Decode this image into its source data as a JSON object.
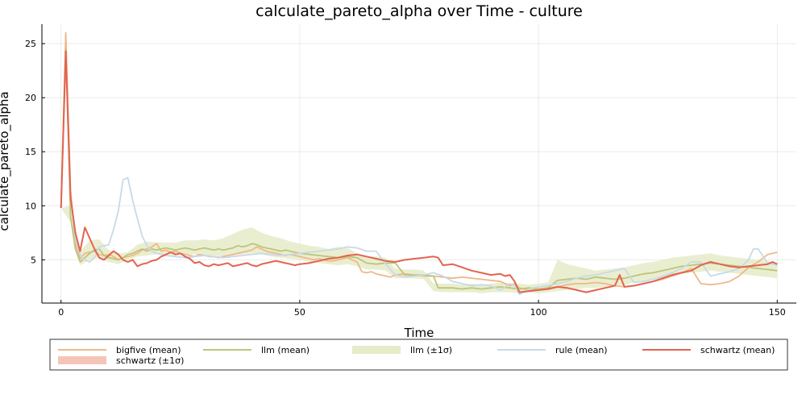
{
  "chart_data": {
    "type": "line",
    "title": "calculate_pareto_alpha over Time - culture",
    "xlabel": "Time",
    "ylabel": "calculate_pareto_alpha",
    "xlim": [
      -4,
      154
    ],
    "ylim": [
      1,
      26.8
    ],
    "xticks": [
      0,
      50,
      100,
      150
    ],
    "yticks": [
      5,
      10,
      15,
      20,
      25
    ],
    "grid": true,
    "legend_position": "bottom",
    "series": [
      {
        "name": "bigfive (mean)",
        "kind": "line",
        "color": "#f0b888",
        "x": [
          0,
          1,
          2,
          3,
          4,
          5,
          6,
          7,
          8,
          9,
          10,
          11,
          12,
          13,
          14,
          15,
          16,
          17,
          18,
          19,
          20,
          21,
          22,
          23,
          24,
          25,
          26,
          27,
          28,
          29,
          30,
          31,
          32,
          33,
          34,
          35,
          36,
          37,
          38,
          39,
          40,
          41,
          42,
          43,
          44,
          45,
          46,
          47,
          48,
          49,
          50,
          51,
          52,
          53,
          54,
          55,
          56,
          57,
          58,
          59,
          60,
          61,
          62,
          63,
          64,
          65,
          66,
          67,
          68,
          69,
          70,
          72,
          74,
          76,
          78,
          80,
          82,
          84,
          86,
          88,
          90,
          92,
          94,
          95,
          96,
          98,
          100,
          102,
          104,
          106,
          108,
          110,
          112,
          114,
          116,
          118,
          120,
          122,
          124,
          126,
          128,
          130,
          132,
          134,
          136,
          138,
          140,
          142,
          144,
          146,
          148,
          150
        ],
        "y": [
          9.8,
          26.0,
          11.5,
          6.5,
          5.1,
          5.6,
          5.7,
          5.8,
          5.5,
          5.4,
          5.5,
          5.3,
          5.0,
          5.2,
          5.3,
          5.4,
          5.6,
          5.9,
          6.0,
          6.2,
          6.5,
          5.8,
          5.9,
          5.7,
          5.8,
          5.6,
          5.5,
          5.4,
          5.3,
          5.5,
          5.4,
          5.3,
          5.3,
          5.2,
          5.3,
          5.4,
          5.5,
          5.6,
          5.7,
          5.8,
          5.9,
          6.2,
          6.0,
          5.8,
          5.7,
          5.6,
          5.5,
          5.4,
          5.5,
          5.4,
          5.3,
          5.2,
          5.1,
          5.0,
          5.1,
          5.0,
          4.9,
          4.9,
          5.0,
          5.1,
          5.2,
          5.0,
          4.8,
          3.9,
          3.8,
          3.9,
          3.7,
          3.6,
          3.5,
          3.4,
          3.6,
          3.7,
          3.6,
          3.5,
          3.5,
          3.4,
          3.3,
          3.4,
          3.3,
          3.2,
          3.1,
          3.0,
          2.6,
          2.8,
          2.4,
          2.2,
          2.3,
          2.4,
          2.5,
          2.7,
          2.8,
          2.8,
          2.9,
          2.8,
          2.6,
          2.5,
          2.6,
          2.8,
          3.0,
          3.2,
          3.5,
          3.8,
          4.2,
          2.8,
          2.7,
          2.8,
          3.0,
          3.5,
          4.3,
          4.8,
          5.5,
          5.7
        ]
      },
      {
        "name": "llm (mean)",
        "kind": "line",
        "color": "#bcc57a",
        "x": [
          0,
          1,
          2,
          3,
          4,
          5,
          6,
          7,
          8,
          9,
          10,
          11,
          12,
          13,
          14,
          15,
          16,
          17,
          18,
          19,
          20,
          21,
          22,
          23,
          24,
          25,
          26,
          27,
          28,
          29,
          30,
          31,
          32,
          33,
          34,
          35,
          36,
          37,
          38,
          39,
          40,
          41,
          42,
          43,
          44,
          45,
          46,
          47,
          48,
          49,
          50,
          52,
          54,
          56,
          58,
          60,
          62,
          64,
          66,
          68,
          70,
          72,
          74,
          76,
          78,
          79,
          80,
          82,
          84,
          86,
          88,
          90,
          92,
          94,
          96,
          98,
          100,
          102,
          104,
          106,
          108,
          110,
          112,
          114,
          116,
          118,
          120,
          122,
          124,
          126,
          128,
          130,
          132,
          134,
          136,
          138,
          140,
          142,
          144,
          146,
          148,
          150
        ],
        "y": [
          9.8,
          24.5,
          9.0,
          6.0,
          4.8,
          5.2,
          5.6,
          5.9,
          6.0,
          5.4,
          5.2,
          5.1,
          5.0,
          5.2,
          5.5,
          5.6,
          5.8,
          6.0,
          5.8,
          6.0,
          5.9,
          6.0,
          6.1,
          6.0,
          5.9,
          6.0,
          6.1,
          6.0,
          5.9,
          6.0,
          6.1,
          6.0,
          5.9,
          6.0,
          5.9,
          6.0,
          6.1,
          6.3,
          6.2,
          6.3,
          6.5,
          6.4,
          6.2,
          6.1,
          6.0,
          5.9,
          5.8,
          5.9,
          5.8,
          5.7,
          5.6,
          5.5,
          5.4,
          5.3,
          5.2,
          5.3,
          5.2,
          4.7,
          4.6,
          4.7,
          4.7,
          3.6,
          3.6,
          3.6,
          3.5,
          2.4,
          2.4,
          2.4,
          2.3,
          2.4,
          2.3,
          2.4,
          2.5,
          2.4,
          2.3,
          2.4,
          2.3,
          2.4,
          3.1,
          3.2,
          3.3,
          3.2,
          3.4,
          3.3,
          3.2,
          3.3,
          3.5,
          3.7,
          3.8,
          4.0,
          4.2,
          4.4,
          4.5,
          4.6,
          4.7,
          4.6,
          4.5,
          4.4,
          4.3,
          4.2,
          4.1,
          4.0
        ]
      },
      {
        "name": "llm (±1σ)",
        "kind": "band",
        "color": "#e6ebc8",
        "x": [
          0,
          2,
          4,
          6,
          8,
          10,
          12,
          14,
          16,
          18,
          20,
          22,
          24,
          26,
          28,
          30,
          32,
          34,
          36,
          38,
          40,
          42,
          44,
          46,
          48,
          50,
          52,
          54,
          56,
          58,
          60,
          62,
          64,
          66,
          68,
          70,
          72,
          74,
          76,
          78,
          80,
          82,
          84,
          86,
          88,
          90,
          92,
          94,
          96,
          98,
          100,
          102,
          104,
          106,
          108,
          110,
          112,
          114,
          116,
          118,
          120,
          122,
          124,
          126,
          128,
          130,
          132,
          134,
          136,
          138,
          140,
          142,
          144,
          146,
          148,
          150
        ],
        "lower": [
          9.8,
          8.5,
          4.5,
          5.0,
          5.2,
          4.8,
          4.6,
          5.0,
          5.3,
          5.4,
          5.5,
          5.5,
          5.4,
          5.5,
          5.5,
          5.4,
          5.4,
          5.3,
          5.4,
          5.5,
          5.6,
          5.5,
          5.3,
          5.2,
          5.1,
          5.0,
          4.8,
          4.7,
          4.6,
          4.5,
          4.6,
          4.4,
          4.1,
          4.1,
          4.0,
          3.3,
          3.3,
          3.3,
          3.2,
          2.1,
          2.0,
          2.0,
          2.0,
          2.0,
          1.9,
          2.0,
          2.0,
          2.0,
          1.9,
          2.0,
          1.9,
          2.0,
          2.1,
          2.2,
          2.3,
          2.4,
          2.4,
          2.5,
          2.6,
          2.7,
          2.9,
          3.0,
          3.2,
          3.3,
          3.5,
          3.7,
          3.8,
          3.9,
          4.0,
          3.9,
          3.8,
          3.7,
          3.6,
          3.5,
          3.4,
          3.3
        ],
        "upper": [
          9.8,
          10.0,
          5.8,
          6.8,
          6.9,
          5.9,
          5.6,
          5.7,
          6.4,
          6.7,
          6.6,
          6.6,
          6.6,
          6.8,
          6.8,
          6.9,
          6.8,
          7.0,
          7.4,
          7.8,
          8.0,
          7.5,
          7.2,
          7.0,
          6.7,
          6.5,
          6.3,
          6.2,
          6.0,
          6.2,
          6.1,
          5.6,
          5.3,
          5.3,
          5.2,
          4.2,
          4.1,
          4.1,
          4.0,
          2.8,
          2.8,
          2.8,
          2.7,
          2.8,
          2.7,
          2.8,
          2.9,
          2.8,
          2.8,
          2.7,
          2.8,
          2.9,
          5.0,
          4.6,
          4.4,
          4.2,
          4.0,
          4.1,
          4.2,
          4.3,
          4.5,
          4.7,
          4.8,
          5.0,
          5.2,
          5.3,
          5.4,
          5.5,
          5.6,
          5.4,
          5.3,
          5.2,
          5.1,
          5.0,
          4.9,
          4.7
        ]
      },
      {
        "name": "rule (mean)",
        "kind": "line",
        "color": "#c7dae8",
        "x": [
          0,
          1,
          2,
          3,
          4,
          5,
          6,
          7,
          8,
          9,
          10,
          11,
          12,
          13,
          14,
          15,
          16,
          17,
          18,
          19,
          20,
          22,
          24,
          26,
          28,
          30,
          32,
          34,
          36,
          38,
          40,
          42,
          44,
          46,
          48,
          50,
          52,
          54,
          56,
          58,
          60,
          62,
          64,
          66,
          68,
          70,
          72,
          74,
          76,
          78,
          80,
          82,
          84,
          86,
          88,
          90,
          92,
          94,
          95,
          96,
          98,
          100,
          102,
          104,
          106,
          108,
          110,
          112,
          114,
          116,
          118,
          120,
          122,
          124,
          126,
          128,
          130,
          132,
          134,
          136,
          138,
          140,
          142,
          144,
          145,
          146,
          148,
          150
        ],
        "y": [
          9.8,
          24.0,
          10.8,
          7.0,
          5.5,
          5.0,
          4.8,
          5.2,
          6.2,
          6.3,
          6.4,
          7.8,
          9.5,
          12.4,
          12.6,
          10.5,
          8.8,
          7.2,
          6.3,
          5.8,
          5.6,
          5.4,
          5.3,
          5.2,
          5.3,
          5.4,
          5.3,
          5.2,
          5.3,
          5.4,
          5.5,
          5.6,
          5.5,
          5.4,
          5.5,
          5.6,
          5.7,
          5.8,
          5.9,
          6.0,
          6.2,
          6.1,
          5.8,
          5.8,
          4.6,
          3.6,
          3.4,
          3.5,
          3.6,
          3.8,
          3.5,
          3.0,
          2.8,
          2.6,
          2.7,
          2.6,
          2.2,
          2.8,
          2.6,
          1.8,
          2.3,
          2.5,
          2.6,
          2.8,
          3.0,
          3.3,
          3.5,
          3.6,
          3.8,
          4.0,
          4.2,
          2.9,
          3.0,
          3.2,
          3.5,
          3.8,
          4.2,
          4.8,
          4.8,
          3.5,
          3.7,
          3.9,
          4.2,
          5.0,
          6.0,
          6.0,
          4.7,
          4.5
        ]
      },
      {
        "name": "schwartz (mean)",
        "kind": "line",
        "color": "#e3634f",
        "x": [
          0,
          1,
          2,
          3,
          4,
          5,
          6,
          7,
          8,
          9,
          10,
          11,
          12,
          13,
          14,
          15,
          16,
          17,
          18,
          19,
          20,
          21,
          22,
          23,
          24,
          25,
          26,
          27,
          28,
          29,
          30,
          31,
          32,
          33,
          34,
          35,
          36,
          37,
          38,
          39,
          40,
          41,
          42,
          43,
          44,
          45,
          46,
          47,
          48,
          49,
          50,
          52,
          54,
          56,
          58,
          60,
          62,
          64,
          66,
          68,
          70,
          72,
          74,
          76,
          78,
          79,
          80,
          82,
          84,
          86,
          88,
          90,
          92,
          93,
          94,
          95,
          96,
          98,
          100,
          102,
          104,
          106,
          108,
          110,
          112,
          114,
          116,
          117,
          118,
          120,
          122,
          124,
          126,
          128,
          130,
          132,
          134,
          136,
          138,
          140,
          142,
          144,
          146,
          148,
          149,
          150
        ],
        "y": [
          9.8,
          24.3,
          10.8,
          7.5,
          5.8,
          8.0,
          7.0,
          6.0,
          5.2,
          5.0,
          5.4,
          5.8,
          5.5,
          5.0,
          4.8,
          5.0,
          4.4,
          4.6,
          4.7,
          4.9,
          5.0,
          5.3,
          5.5,
          5.7,
          5.5,
          5.6,
          5.3,
          5.1,
          4.7,
          4.8,
          4.5,
          4.4,
          4.6,
          4.5,
          4.6,
          4.7,
          4.4,
          4.5,
          4.6,
          4.7,
          4.5,
          4.4,
          4.6,
          4.7,
          4.8,
          4.9,
          4.8,
          4.7,
          4.6,
          4.5,
          4.6,
          4.7,
          4.9,
          5.1,
          5.2,
          5.4,
          5.5,
          5.3,
          5.1,
          4.9,
          4.8,
          5.0,
          5.1,
          5.2,
          5.3,
          5.2,
          4.5,
          4.6,
          4.3,
          4.0,
          3.8,
          3.6,
          3.7,
          3.5,
          3.6,
          3.0,
          2.0,
          2.1,
          2.2,
          2.3,
          2.5,
          2.4,
          2.2,
          2.0,
          2.2,
          2.4,
          2.6,
          3.6,
          2.5,
          2.6,
          2.8,
          3.0,
          3.3,
          3.6,
          3.8,
          4.0,
          4.5,
          4.8,
          4.6,
          4.4,
          4.3,
          4.4,
          4.5,
          4.6,
          4.8,
          4.6
        ]
      },
      {
        "name": "schwartz (±1σ)",
        "kind": "band",
        "color": "#f4c4b8",
        "x": [],
        "lower": [],
        "upper": []
      }
    ]
  }
}
